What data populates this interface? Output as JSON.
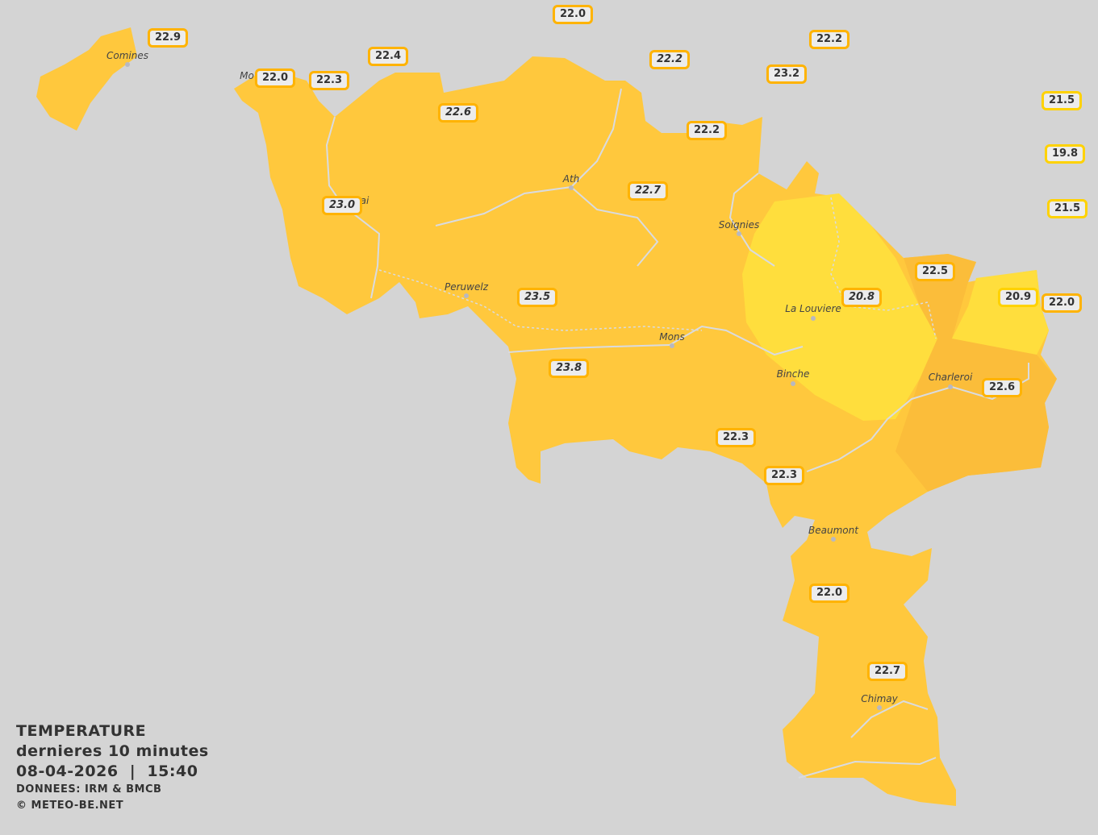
{
  "legend": {
    "title": "TEMPERATURE",
    "period": "dernieres 10 minutes",
    "datetime": "08-04-2026  |  15:40",
    "source": "DONNEES: IRM & BMCB",
    "copyright": "© METEO-BE.NET"
  },
  "colors": {
    "background": "#d4d4d4",
    "zone_22_24": "#ffc83d",
    "zone_20_22": "#ffde3d",
    "label_border_default": "#ffb300",
    "label_border_cool": "#ffd200"
  },
  "cities": [
    {
      "name": "Comines"
    },
    {
      "name": "Mo"
    },
    {
      "name": "ai"
    },
    {
      "name": "Ath"
    },
    {
      "name": "Soignies"
    },
    {
      "name": "Peruwelz"
    },
    {
      "name": "La Louviere"
    },
    {
      "name": "Mons"
    },
    {
      "name": "Binche"
    },
    {
      "name": "Charleroi"
    },
    {
      "name": "Beaumont"
    },
    {
      "name": "Chimay"
    }
  ],
  "stations": [
    {
      "value": "22.0",
      "italic": false,
      "cool": false
    },
    {
      "value": "22.9",
      "italic": false,
      "cool": false
    },
    {
      "value": "22.2",
      "italic": false,
      "cool": false
    },
    {
      "value": "22.4",
      "italic": false,
      "cool": false
    },
    {
      "value": "22.2",
      "italic": true,
      "cool": false
    },
    {
      "value": "22.0",
      "italic": false,
      "cool": false
    },
    {
      "value": "22.3",
      "italic": false,
      "cool": false
    },
    {
      "value": "23.2",
      "italic": false,
      "cool": false
    },
    {
      "value": "21.5",
      "italic": false,
      "cool": true
    },
    {
      "value": "22.6",
      "italic": true,
      "cool": false
    },
    {
      "value": "22.2",
      "italic": false,
      "cool": false
    },
    {
      "value": "19.8",
      "italic": false,
      "cool": true
    },
    {
      "value": "22.7",
      "italic": true,
      "cool": false
    },
    {
      "value": "23.0",
      "italic": true,
      "cool": false
    },
    {
      "value": "21.5",
      "italic": false,
      "cool": true
    },
    {
      "value": "22.5",
      "italic": false,
      "cool": false
    },
    {
      "value": "20.8",
      "italic": true,
      "cool": false
    },
    {
      "value": "20.9",
      "italic": false,
      "cool": true
    },
    {
      "value": "22.0",
      "italic": false,
      "cool": false
    },
    {
      "value": "23.5",
      "italic": true,
      "cool": false
    },
    {
      "value": "23.8",
      "italic": true,
      "cool": false
    },
    {
      "value": "22.6",
      "italic": false,
      "cool": false
    },
    {
      "value": "22.3",
      "italic": false,
      "cool": false
    },
    {
      "value": "22.3",
      "italic": false,
      "cool": false
    },
    {
      "value": "22.0",
      "italic": false,
      "cool": false
    },
    {
      "value": "22.7",
      "italic": false,
      "cool": false
    }
  ]
}
